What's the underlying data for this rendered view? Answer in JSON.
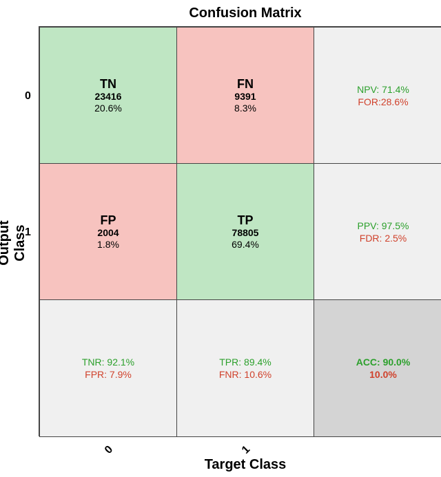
{
  "chart_data": {
    "type": "heatmap",
    "title": "Confusion Matrix",
    "xlabel": "Target Class",
    "ylabel": "Output Class",
    "x_ticks": [
      "0",
      "1"
    ],
    "y_ticks": [
      "0",
      "1"
    ],
    "cells": [
      [
        {
          "label": "TN",
          "count": "23416",
          "percent": "20.6%"
        },
        {
          "label": "FN",
          "count": "9391",
          "percent": "8.3%"
        }
      ],
      [
        {
          "label": "FP",
          "count": "2004",
          "percent": "1.8%"
        },
        {
          "label": "TP",
          "count": "78805",
          "percent": "69.4%"
        }
      ]
    ],
    "row_summary": [
      {
        "green": "NPV: 71.4%",
        "red": "FOR:28.6%"
      },
      {
        "green": "PPV: 97.5%",
        "red": "FDR: 2.5%"
      }
    ],
    "col_summary": [
      {
        "green": "TNR: 92.1%",
        "red": "FPR: 7.9%"
      },
      {
        "green": "TPR: 89.4%",
        "red": "FNR: 10.6%"
      }
    ],
    "overall": {
      "green": "ACC: 90.0%",
      "red": "10.0%"
    },
    "colors": {
      "correct": "#bfe6c3",
      "incorrect": "#f7c3bf",
      "summary": "#f0f0f0",
      "overall": "#d4d4d4",
      "green_text": "#2ca02c",
      "red_text": "#d0412b"
    }
  }
}
